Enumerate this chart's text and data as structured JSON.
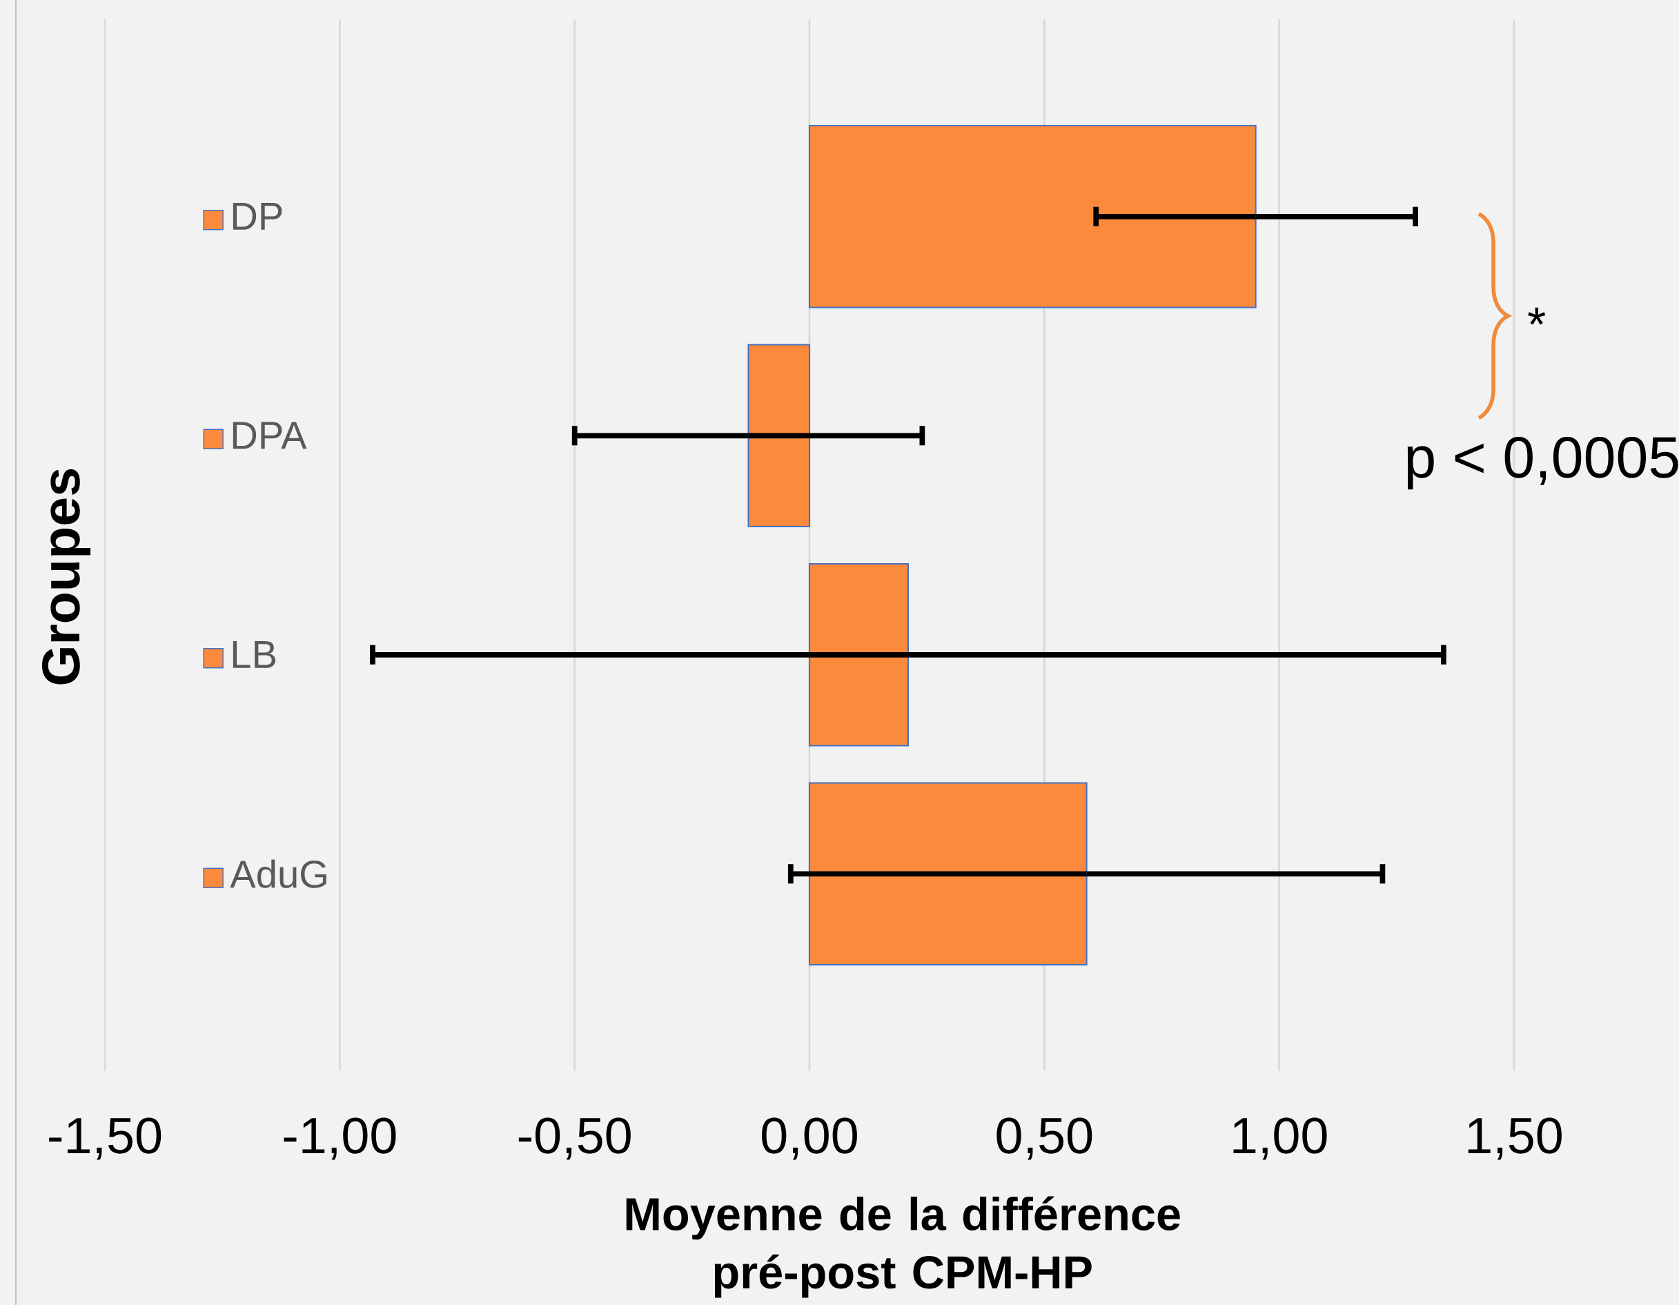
{
  "chart_data": {
    "type": "bar",
    "orientation": "horizontal",
    "xlabel": "Moyenne de la différence pré-post CPM-HP",
    "ylabel": "Groupes",
    "categories": [
      "DP",
      "DPA",
      "LB",
      "AduG"
    ],
    "values": [
      0.95,
      -0.13,
      0.21,
      0.59
    ],
    "errors": [
      0.34,
      0.37,
      1.14,
      0.63
    ],
    "color": "#fb8a3c",
    "xlim": [
      -1.5,
      1.5
    ],
    "xticks": [
      {
        "value": -1.5,
        "label": "-1,50"
      },
      {
        "value": -1,
        "label": "-1,00"
      },
      {
        "value": -0.5,
        "label": "-0,50"
      },
      {
        "value": 0,
        "label": "0,00"
      },
      {
        "value": 0.5,
        "label": "0,50"
      },
      {
        "value": 1,
        "label": "1,00"
      },
      {
        "value": 1.5,
        "label": "1,50"
      }
    ],
    "grid": "x",
    "annotations": [
      "*",
      "p < 0,0005"
    ]
  }
}
